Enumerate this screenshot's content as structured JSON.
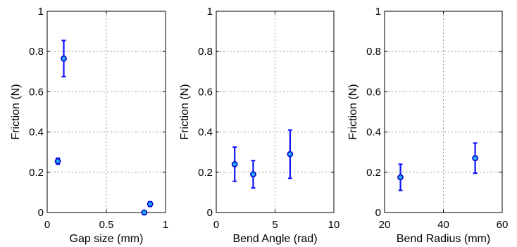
{
  "chart_data": [
    {
      "type": "scatter",
      "xlabel": "Gap size (mm)",
      "ylabel": "Friction (N)",
      "xlim": [
        0,
        1
      ],
      "ylim": [
        0,
        1
      ],
      "xticks": [
        0,
        0.5,
        1
      ],
      "xtick_labels": [
        "0",
        "0.5",
        "1"
      ],
      "yticks": [
        0,
        0.2,
        0.4,
        0.6,
        0.8,
        1
      ],
      "ytick_labels": [
        "0",
        "0.2",
        "0.4",
        "0.6",
        "0.8",
        "1"
      ],
      "grid": true,
      "marker_color": "#22a8f0",
      "error_color": "#1010ff",
      "points": [
        {
          "x": 0.09,
          "y": 0.255,
          "err": 0.015
        },
        {
          "x": 0.14,
          "y": 0.765,
          "err": 0.09
        },
        {
          "x": 0.82,
          "y": 0.0,
          "err": 0.005
        },
        {
          "x": 0.87,
          "y": 0.042,
          "err": 0.012
        }
      ]
    },
    {
      "type": "scatter",
      "xlabel": "Bend Angle (rad)",
      "ylabel": "Friction (N)",
      "xlim": [
        0,
        10
      ],
      "ylim": [
        0,
        1
      ],
      "xticks": [
        0,
        5,
        10
      ],
      "xtick_labels": [
        "0",
        "5",
        "10"
      ],
      "yticks": [
        0,
        0.2,
        0.4,
        0.6,
        0.8,
        1
      ],
      "ytick_labels": [
        "0",
        "0.2",
        "0.4",
        "0.6",
        "0.8",
        "1"
      ],
      "grid": true,
      "marker_color": "#22a8f0",
      "error_color": "#1010ff",
      "points": [
        {
          "x": 1.57,
          "y": 0.24,
          "err": 0.085
        },
        {
          "x": 3.14,
          "y": 0.19,
          "err": 0.068
        },
        {
          "x": 6.28,
          "y": 0.29,
          "err": 0.12
        }
      ]
    },
    {
      "type": "scatter",
      "xlabel": "Bend Radius (mm)",
      "ylabel": "Friction (N)",
      "xlim": [
        20,
        60
      ],
      "ylim": [
        0,
        1
      ],
      "xticks": [
        20,
        40,
        60
      ],
      "xtick_labels": [
        "20",
        "40",
        "60"
      ],
      "yticks": [
        0,
        0.2,
        0.4,
        0.6,
        0.8,
        1
      ],
      "ytick_labels": [
        "0",
        "0.2",
        "0.4",
        "0.6",
        "0.8",
        "1"
      ],
      "grid": true,
      "marker_color": "#22a8f0",
      "error_color": "#1010ff",
      "points": [
        {
          "x": 25.4,
          "y": 0.175,
          "err": 0.065
        },
        {
          "x": 50.8,
          "y": 0.27,
          "err": 0.075
        }
      ]
    }
  ]
}
